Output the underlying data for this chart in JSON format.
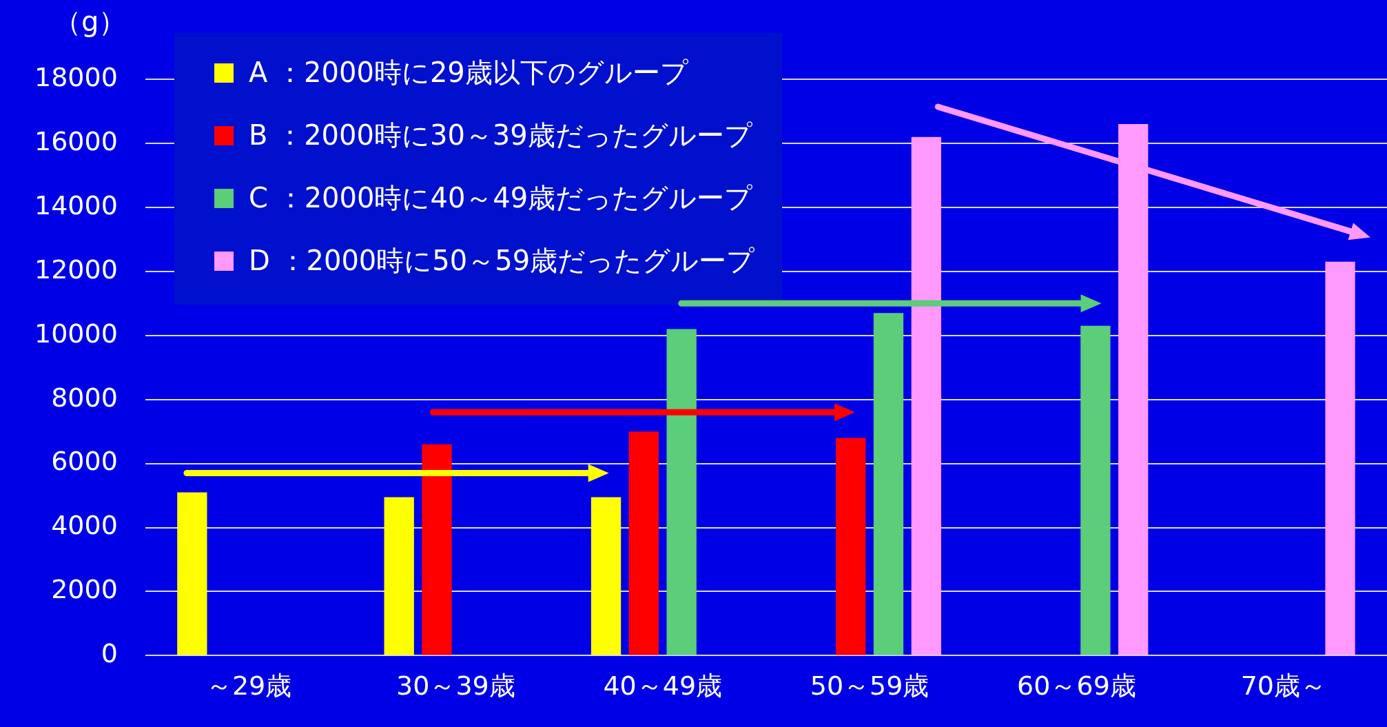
{
  "chart_data": {
    "type": "bar",
    "ylabel": "（g）",
    "categories": [
      "～29歳",
      "30～39歳",
      "40～49歳",
      "50～59歳",
      "60～69歳",
      "70歳～"
    ],
    "series": [
      {
        "name": "A ：2000時に29歳以下のグループ",
        "color": "#ffff00",
        "values": [
          5100,
          4950,
          4950,
          null,
          null,
          null
        ]
      },
      {
        "name": "B ：2000時に30～39歳だったグループ",
        "color": "#ff0000",
        "values": [
          null,
          6600,
          7000,
          6800,
          null,
          null
        ]
      },
      {
        "name": "C ：2000時に40～49歳だったグループ",
        "color": "#5ccd78",
        "values": [
          null,
          null,
          10200,
          10700,
          10300,
          null
        ]
      },
      {
        "name": "D ：2000時に50～59歳だったグループ",
        "color": "#ff99ff",
        "values": [
          null,
          null,
          null,
          16200,
          16600,
          12300
        ]
      }
    ],
    "ylim": [
      0,
      18000
    ],
    "yticks": [
      0,
      2000,
      4000,
      6000,
      8000,
      10000,
      12000,
      14000,
      16000,
      18000
    ],
    "grid": "y",
    "legend": "top left"
  }
}
